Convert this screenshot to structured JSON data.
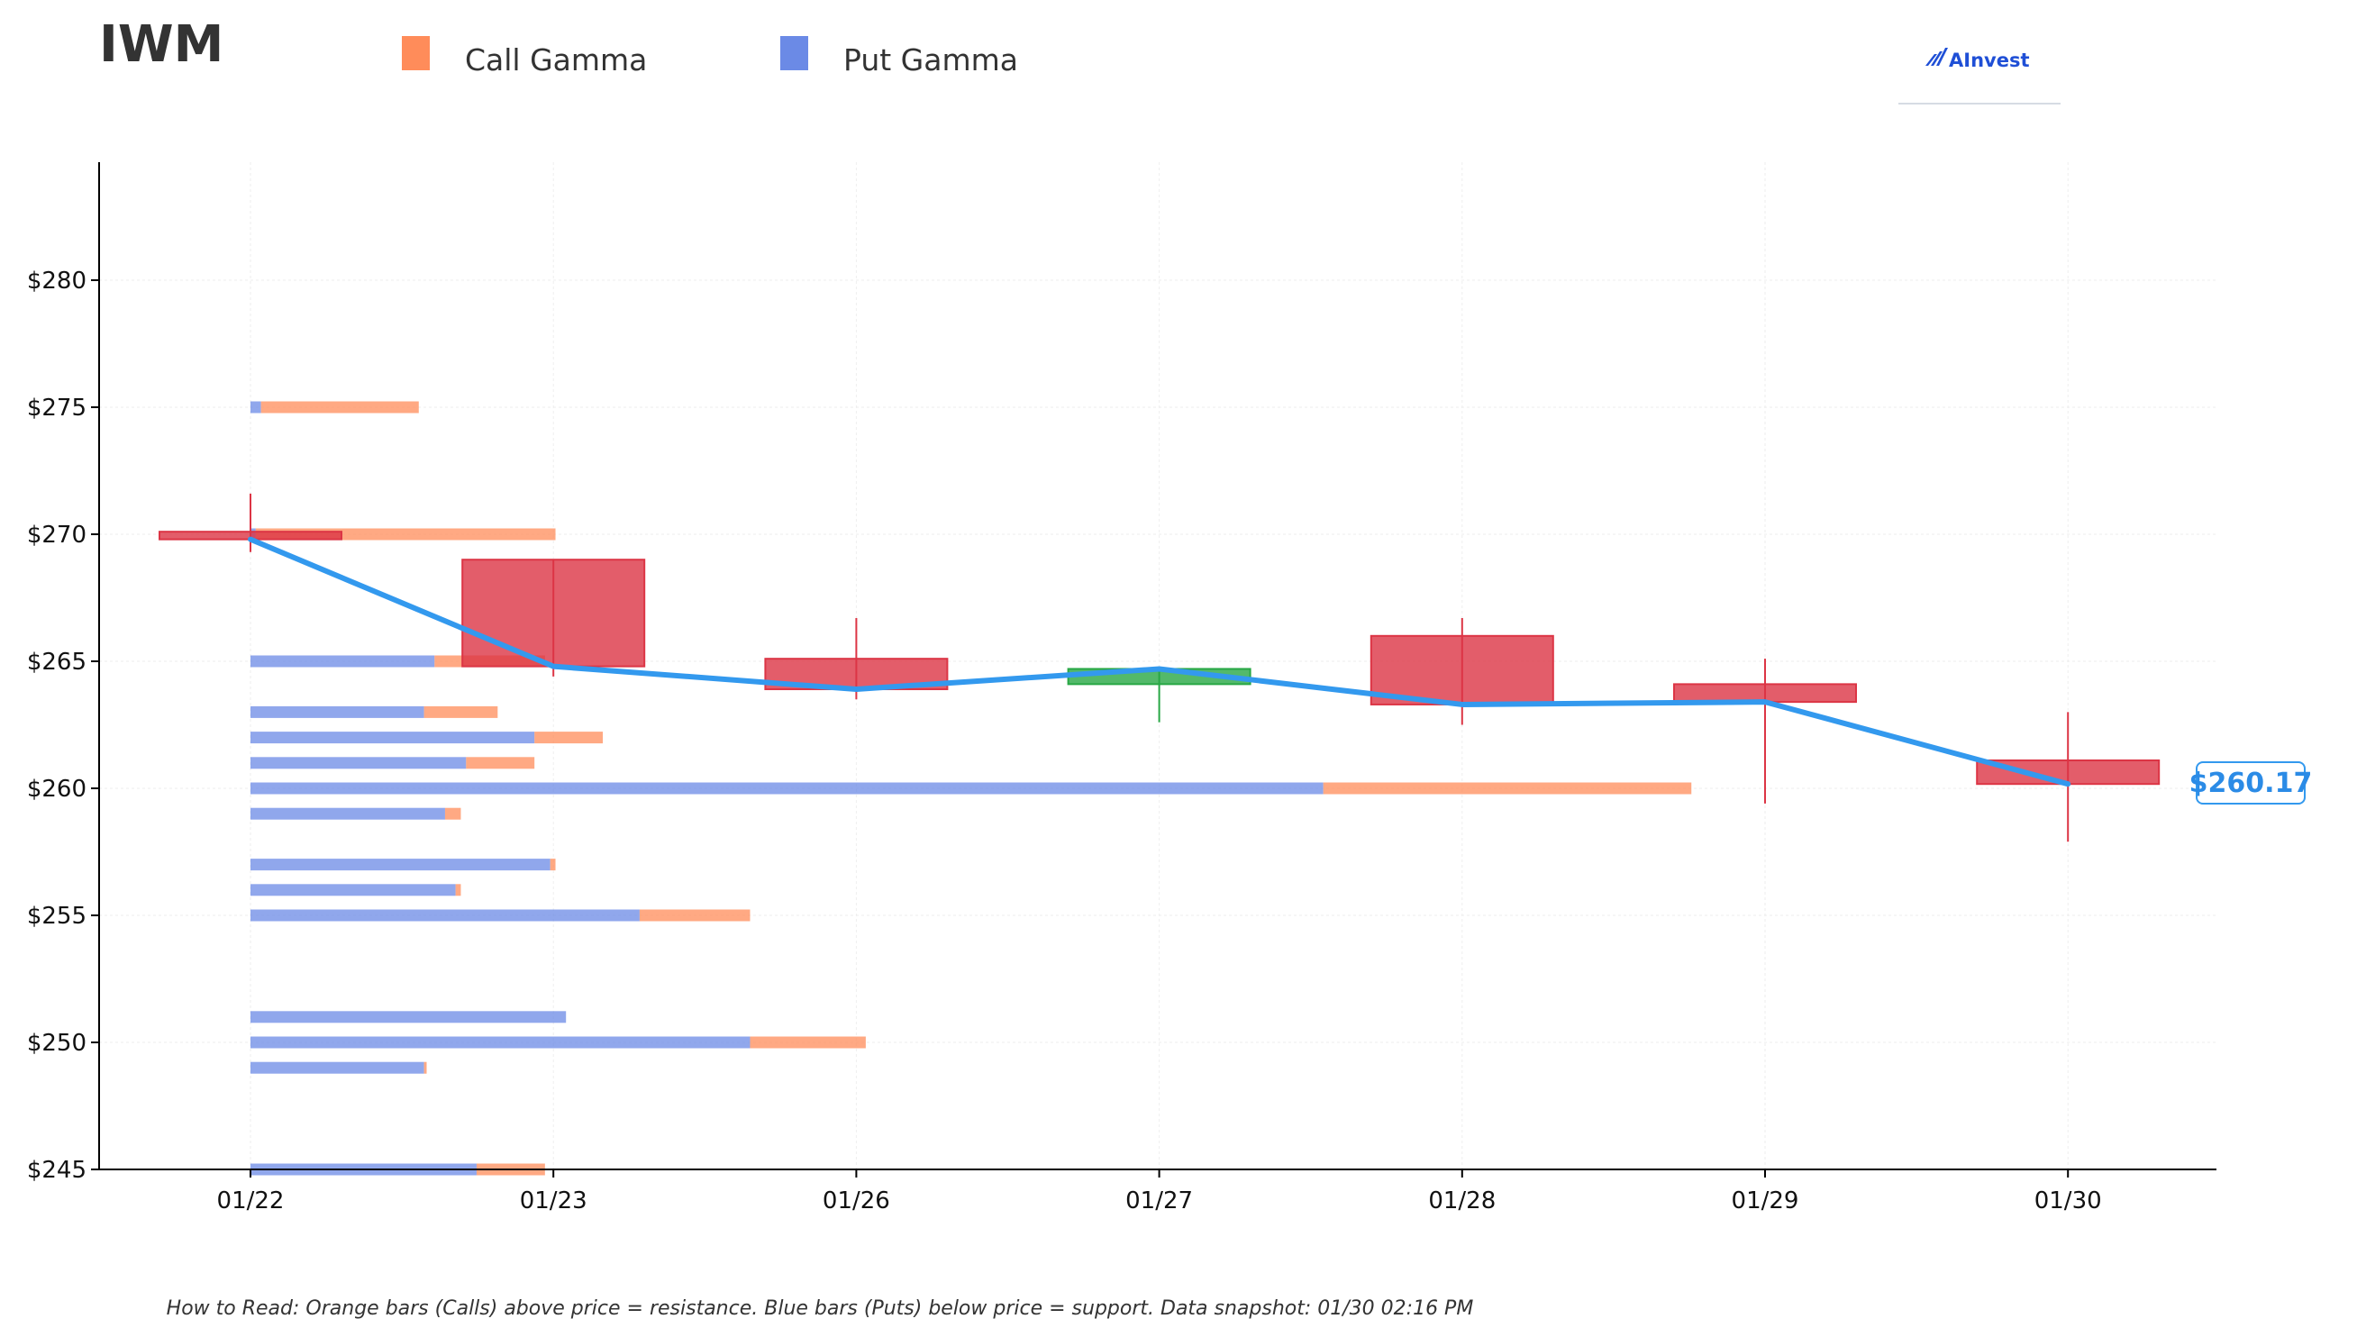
{
  "ticker": "IWM",
  "legend": {
    "call_label": "Call Gamma",
    "put_label": "Put Gamma"
  },
  "logo": {
    "text": "AInvest"
  },
  "footnote": "How to Read: Orange bars (Calls) above price = resistance. Blue bars (Puts) below price = support. Data snapshot: 01/30 02:16 PM",
  "current_price_label": "$260.17",
  "colors": {
    "call": "#ff8c5a",
    "put": "#6b8ae6",
    "down_candle": "#dc3545",
    "up_candle": "#28a745",
    "price_line": "#3399ee",
    "logo": "#1f4fd6"
  },
  "chart_data": {
    "type": "candlestick",
    "categories": [
      "01/22",
      "01/23",
      "01/26",
      "01/27",
      "01/28",
      "01/29",
      "01/30"
    ],
    "ylim": [
      245,
      284.5
    ],
    "yticks": [
      245,
      250,
      255,
      260,
      265,
      270,
      275,
      280
    ],
    "ytick_labels": [
      "$245",
      "$250",
      "$255",
      "$260",
      "$265",
      "$270",
      "$275",
      "$280"
    ],
    "grid": true,
    "candles": [
      {
        "date": "01/22",
        "open": 270.1,
        "high": 271.6,
        "low": 269.3,
        "close": 269.8,
        "wide": true
      },
      {
        "date": "01/23",
        "open": 269.0,
        "high": 269.0,
        "low": 264.4,
        "close": 264.8
      },
      {
        "date": "01/26",
        "open": 265.1,
        "high": 266.7,
        "low": 263.5,
        "close": 263.9
      },
      {
        "date": "01/27",
        "open": 264.1,
        "high": 264.8,
        "low": 262.6,
        "close": 264.7
      },
      {
        "date": "01/28",
        "open": 266.0,
        "high": 266.7,
        "low": 262.5,
        "close": 263.3
      },
      {
        "date": "01/29",
        "open": 264.1,
        "high": 265.1,
        "low": 259.4,
        "close": 263.4
      },
      {
        "date": "01/30",
        "open": 261.1,
        "high": 263.0,
        "low": 257.9,
        "close": 260.17
      }
    ],
    "price_line": [
      269.8,
      264.8,
      263.9,
      264.7,
      263.3,
      263.4,
      260.17
    ],
    "gamma_bars": [
      {
        "strike": 275,
        "put": 0.2,
        "call": 3.0
      },
      {
        "strike": 270,
        "put": 0.1,
        "call": 5.7
      },
      {
        "strike": 265,
        "put": 3.5,
        "call": 2.1
      },
      {
        "strike": 263,
        "put": 3.3,
        "call": 1.4
      },
      {
        "strike": 262,
        "put": 5.4,
        "call": 1.3
      },
      {
        "strike": 261,
        "put": 4.1,
        "call": 1.3
      },
      {
        "strike": 260,
        "put": 20.4,
        "call": 7.0
      },
      {
        "strike": 259,
        "put": 3.7,
        "call": 0.3
      },
      {
        "strike": 257,
        "put": 5.7,
        "call": 0.1
      },
      {
        "strike": 256,
        "put": 3.9,
        "call": 0.1
      },
      {
        "strike": 255,
        "put": 7.4,
        "call": 2.1
      },
      {
        "strike": 251,
        "put": 6.0,
        "call": 0
      },
      {
        "strike": 250,
        "put": 9.5,
        "call": 2.2
      },
      {
        "strike": 249,
        "put": 3.3,
        "call": 0.05
      },
      {
        "strike": 245,
        "put": 4.3,
        "call": 1.3
      }
    ],
    "gamma_scale_max": 30
  }
}
